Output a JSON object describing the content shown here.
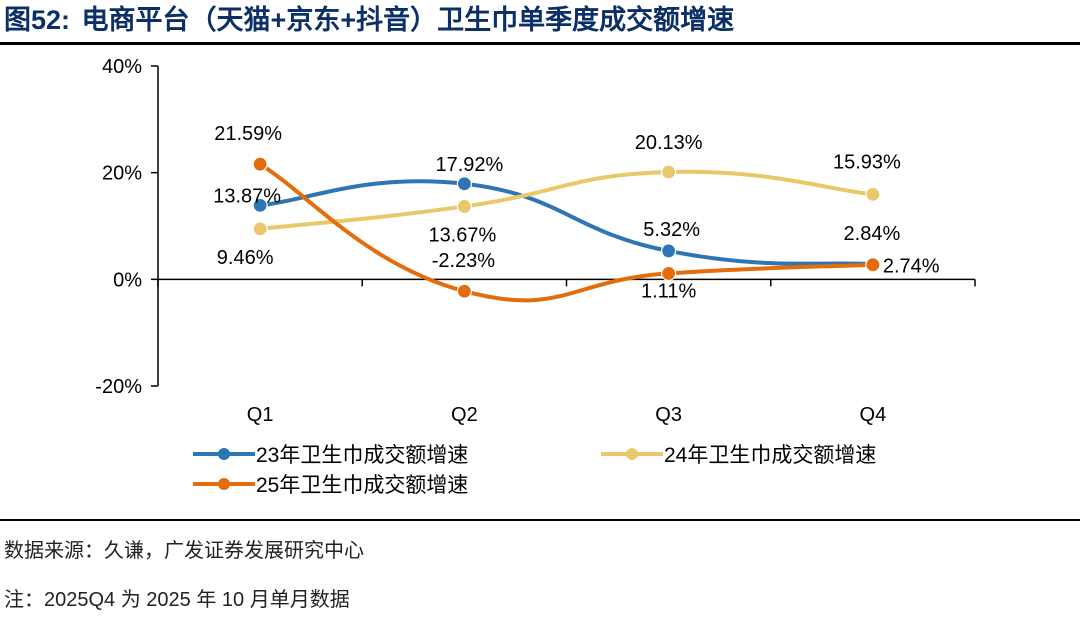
{
  "figure": {
    "number": "图52:",
    "title": "电商平台（天猫+京东+抖音）卫生巾单季度成交额增速",
    "source": "数据来源：久谦，广发证券发展研究中心",
    "note": "注：2025Q4 为 2025 年 10 月单月数据"
  },
  "chart_data": {
    "type": "line",
    "smooth": true,
    "categories": [
      "Q1",
      "Q2",
      "Q3",
      "Q4"
    ],
    "ylim": [
      -20,
      40
    ],
    "yticks": [
      -20,
      0,
      20,
      40
    ],
    "ytick_labels": [
      "-20%",
      "0%",
      "20%",
      "40%"
    ],
    "series": [
      {
        "name": "23年卫生巾成交额增速",
        "color": "#2E75B6",
        "values": [
          13.87,
          17.92,
          5.32,
          2.84
        ],
        "labels": [
          "13.87%",
          "17.92%",
          "5.32%",
          "2.84%"
        ]
      },
      {
        "name": "24年卫生巾成交额增速",
        "color": "#E8C86A",
        "values": [
          9.46,
          13.67,
          20.13,
          15.93
        ],
        "labels": [
          "9.46%",
          "13.67%",
          "20.13%",
          "15.93%"
        ]
      },
      {
        "name": "25年卫生巾成交额增速",
        "color": "#E46C0A",
        "values": [
          21.59,
          -2.23,
          1.11,
          2.74
        ],
        "labels": [
          "21.59%",
          "-2.23%",
          "1.11%",
          "2.74%"
        ]
      }
    ],
    "legend_position": "bottom",
    "grid": false
  }
}
